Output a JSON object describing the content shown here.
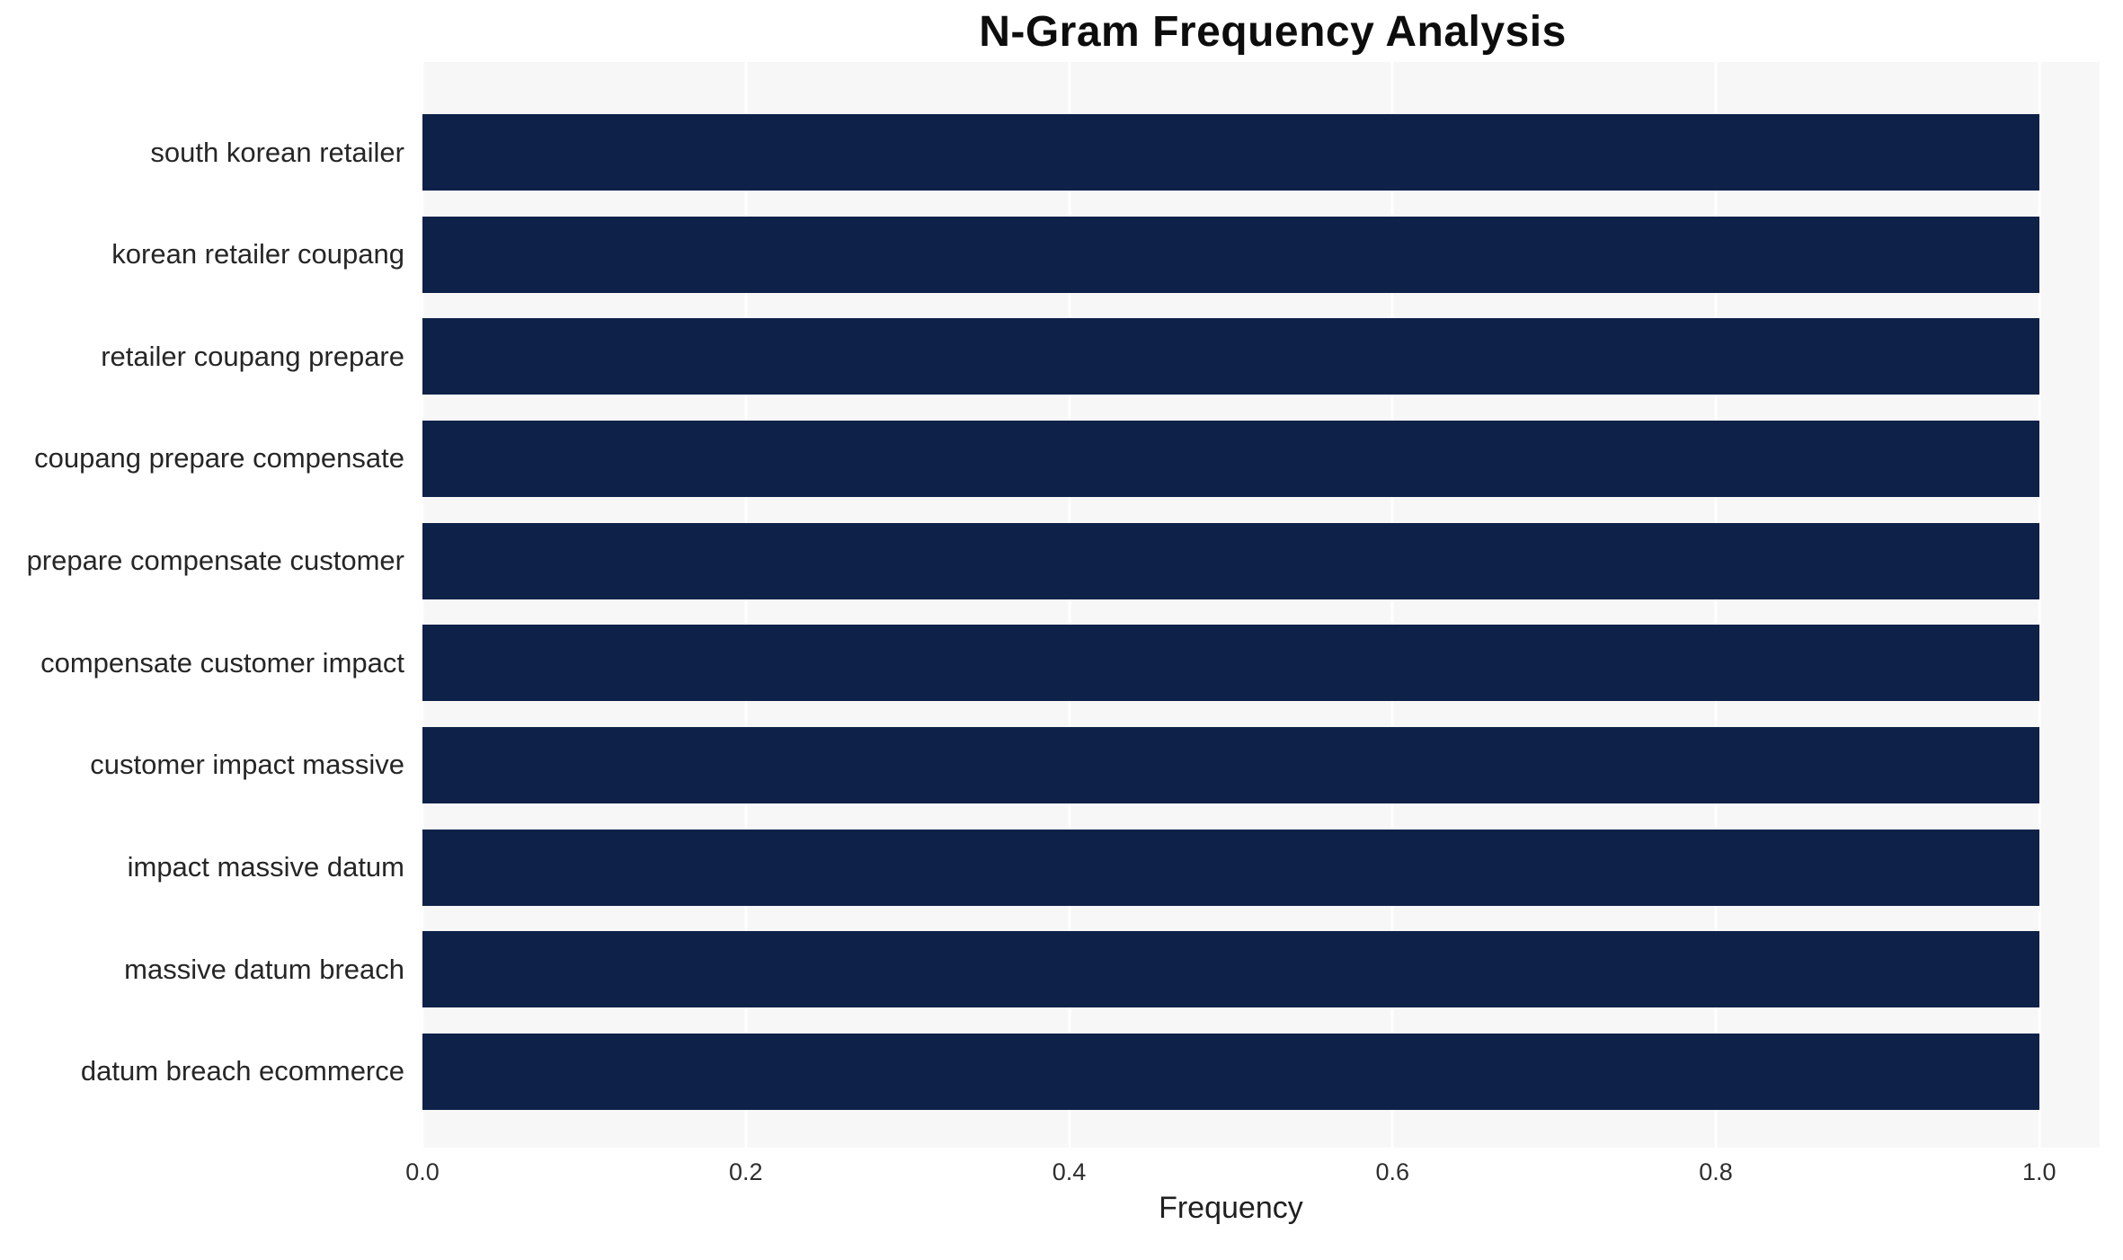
{
  "chart_data": {
    "type": "bar",
    "orientation": "horizontal",
    "title": "N-Gram Frequency Analysis",
    "xlabel": "Frequency",
    "ylabel": "",
    "categories": [
      "south korean retailer",
      "korean retailer coupang",
      "retailer coupang prepare",
      "coupang prepare compensate",
      "prepare compensate customer",
      "compensate customer impact",
      "customer impact massive",
      "impact massive datum",
      "massive datum breach",
      "datum breach ecommerce"
    ],
    "values": [
      1.0,
      1.0,
      1.0,
      1.0,
      1.0,
      1.0,
      1.0,
      1.0,
      1.0,
      1.0
    ],
    "xticks": [
      "0.0",
      "0.2",
      "0.4",
      "0.6",
      "0.8",
      "1.0"
    ],
    "xlim": [
      0,
      1.04
    ],
    "grid": true,
    "legend": false,
    "bar_color": "#0d2149",
    "plot_background": "#f7f7f7",
    "grid_color": "#ffffff"
  }
}
